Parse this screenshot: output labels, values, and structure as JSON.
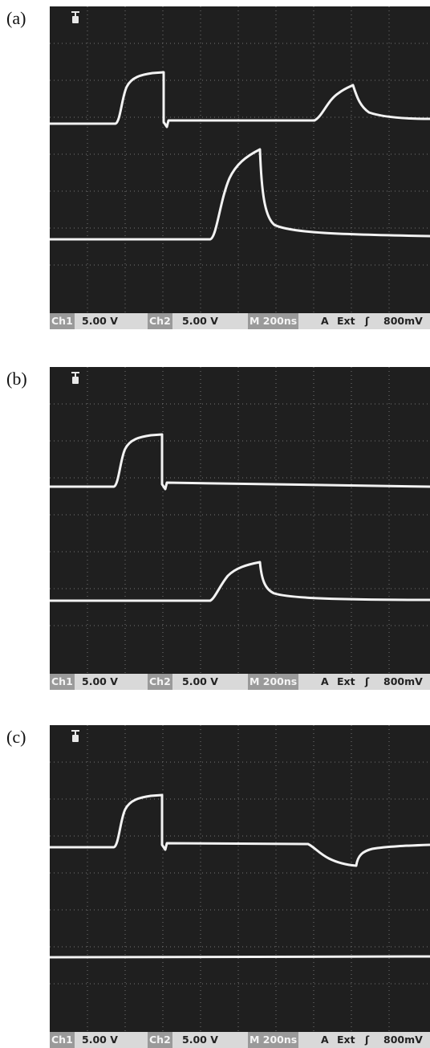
{
  "panels": [
    {
      "label": "(a)",
      "status": {
        "ch1": "Ch1",
        "ch1_scale": "5.00 V",
        "ch2": "Ch2",
        "ch2_scale": "5.00 V",
        "timebase": "M 200ns",
        "trigger_mode": "A",
        "trigger_source": "Ext",
        "trigger_slope": "ʃ",
        "trigger_level": "800mV"
      }
    },
    {
      "label": "(b)",
      "status": {
        "ch1": "Ch1",
        "ch1_scale": "5.00 V",
        "ch2": "Ch2",
        "ch2_scale": "5.00 V",
        "timebase": "M 200ns",
        "trigger_mode": "A",
        "trigger_source": "Ext",
        "trigger_slope": "ʃ",
        "trigger_level": "800mV"
      }
    },
    {
      "label": "(c)",
      "status": {
        "ch1": "Ch1",
        "ch1_scale": "5.00 V",
        "ch2": "Ch2",
        "ch2_scale": "5.00 V",
        "timebase": "M 200ns",
        "trigger_mode": "A",
        "trigger_source": "Ext",
        "trigger_slope": "ʃ",
        "trigger_level": "800mV"
      }
    }
  ],
  "colors": {
    "screen": "#202020",
    "trace": "#f2f2f2",
    "grid": "#8a8a8a",
    "status_bar": "#d9d9d9"
  },
  "icons": {
    "trigger_marker": "trigger-t-icon"
  }
}
